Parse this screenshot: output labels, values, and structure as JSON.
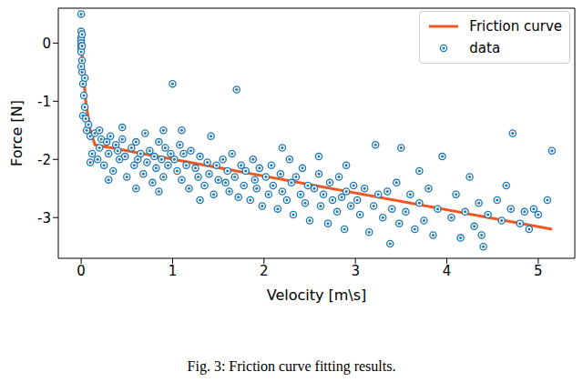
{
  "chart_data": {
    "type": "scatter",
    "caption": "Fig. 3: Friction curve fitting results.",
    "x_label": "Velocity [m\\s]",
    "y_label": "Force [N]",
    "xlim": [
      -0.25,
      5.4
    ],
    "xticks": [
      0,
      1,
      2,
      3,
      4,
      5
    ],
    "ylim": [
      -3.7,
      0.6
    ],
    "yticks": [
      -3,
      -2,
      -1,
      0
    ],
    "grid": false,
    "legend": "upper right",
    "series": [
      {
        "name": "Friction curve",
        "type": "line",
        "color": "#f0561f",
        "line_style": "solid",
        "x": [
          0,
          0.05,
          0.1,
          0.15,
          5.15
        ],
        "values": [
          0,
          -1.0,
          -1.5,
          -1.75,
          -3.2
        ]
      },
      {
        "name": "data",
        "type": "scatter",
        "color": "#1f77b4",
        "marker": "circle",
        "x": [
          0,
          0,
          0,
          0,
          0,
          0,
          0,
          0,
          0.01,
          0.01,
          0.01,
          0.01,
          0.02,
          0,
          0.02,
          0.03,
          0.04,
          0.05,
          0.06,
          0.04,
          0.08,
          0.1,
          0.12,
          0.15,
          0.18,
          0.2,
          0.22,
          0.25,
          0.28,
          0.3,
          0.32,
          0.35,
          0.38,
          0.4,
          0.42,
          0.45,
          0.48,
          0.5,
          0.1,
          0.2,
          0.3,
          0.45,
          0.55,
          0.58,
          0.6,
          0.62,
          0.65,
          0.68,
          0.7,
          0.72,
          0.75,
          0.78,
          0.8,
          0.82,
          0.85,
          0.88,
          0.9,
          0.92,
          0.95,
          0.98,
          0.6,
          0.85,
          1.0,
          0.9,
          1.02,
          1.05,
          1.08,
          1.1,
          1.12,
          1.15,
          1.18,
          1.2,
          1.25,
          1.28,
          1.3,
          1.35,
          1.38,
          1.4,
          1.42,
          1.45,
          1.48,
          1.5,
          1.1,
          1.3,
          1.55,
          1.58,
          1.6,
          1.62,
          1.65,
          1.68,
          1.7,
          1.72,
          1.75,
          1.78,
          1.8,
          1.85,
          1.88,
          1.9,
          1.92,
          1.95,
          1.98,
          2.02,
          2.05,
          2.08,
          2.1,
          2.15,
          2.18,
          2.2,
          2.25,
          2.28,
          2.3,
          2.32,
          2.35,
          2.4,
          2.42,
          2.45,
          2.48,
          2.5,
          2.2,
          2.55,
          2.6,
          2.62,
          2.65,
          2.7,
          2.72,
          2.75,
          2.8,
          2.82,
          2.85,
          2.88,
          2.9,
          2.95,
          2.98,
          2.6,
          2.9,
          3.02,
          3.05,
          3.1,
          3.15,
          3.2,
          3.22,
          3.25,
          3.3,
          3.35,
          3.38,
          3.4,
          3.45,
          3.48,
          3.5,
          3.55,
          3.6,
          3.65,
          3.7,
          3.75,
          3.8,
          3.85,
          3.9,
          3.95,
          3.7,
          4.05,
          4.1,
          4.15,
          4.2,
          4.25,
          4.3,
          4.35,
          4.4,
          4.45,
          4.38,
          4.55,
          4.6,
          4.7,
          4.72,
          4.8,
          4.85,
          4.95,
          5.0,
          5.1,
          5.15,
          4.9,
          4.65
        ],
        "values": [
          0.5,
          0.2,
          0.1,
          0.05,
          0,
          -0.05,
          -0.1,
          -0.15,
          0.15,
          -0.05,
          -0.3,
          -0.5,
          -0.7,
          -0.4,
          -1.25,
          -0.9,
          -1.1,
          -1.3,
          -1.5,
          -0.6,
          -1.4,
          -1.6,
          -1.9,
          -1.55,
          -2.0,
          -1.8,
          -1.65,
          -2.1,
          -1.7,
          -1.9,
          -1.6,
          -2.2,
          -1.75,
          -1.85,
          -2.0,
          -1.65,
          -1.95,
          -2.3,
          -2.05,
          -1.5,
          -2.35,
          -1.45,
          -1.8,
          -2.1,
          -1.7,
          -2.0,
          -1.9,
          -2.25,
          -1.55,
          -2.05,
          -1.85,
          -2.4,
          -1.95,
          -2.15,
          -1.7,
          -2.0,
          -2.3,
          -1.8,
          -2.1,
          -1.9,
          -2.5,
          -2.55,
          -0.7,
          -1.5,
          -2.0,
          -2.2,
          -1.75,
          -2.35,
          -1.9,
          -2.1,
          -2.5,
          -1.85,
          -2.15,
          -2.3,
          -1.95,
          -2.45,
          -2.05,
          -2.25,
          -1.6,
          -2.6,
          -2.1,
          -2.35,
          -1.5,
          -2.7,
          -2.0,
          -2.4,
          -2.2,
          -2.55,
          -1.9,
          -2.3,
          -0.8,
          -2.65,
          -2.1,
          -2.45,
          -2.2,
          -2.7,
          -2.0,
          -2.35,
          -2.5,
          -2.15,
          -2.8,
          -2.3,
          -2.6,
          -2.1,
          -2.45,
          -2.85,
          -2.25,
          -2.55,
          -2.7,
          -2.0,
          -2.4,
          -2.95,
          -2.3,
          -2.6,
          -2.15,
          -2.75,
          -2.45,
          -3.05,
          -1.8,
          -2.5,
          -2.25,
          -2.8,
          -2.6,
          -3.1,
          -2.4,
          -2.7,
          -2.9,
          -2.3,
          -2.65,
          -3.2,
          -2.55,
          -2.8,
          -2.45,
          -1.95,
          -2.1,
          -2.7,
          -2.95,
          -2.5,
          -3.25,
          -2.8,
          -1.75,
          -2.6,
          -3.0,
          -2.55,
          -3.45,
          -2.85,
          -2.4,
          -3.1,
          -1.8,
          -2.9,
          -2.6,
          -3.2,
          -2.75,
          -3.05,
          -2.5,
          -3.3,
          -2.85,
          -1.95,
          -2.2,
          -3.0,
          -2.6,
          -3.35,
          -2.9,
          -2.3,
          -3.15,
          -2.75,
          -3.5,
          -2.95,
          -3.3,
          -2.7,
          -3.05,
          -2.85,
          -1.55,
          -3.1,
          -2.9,
          -2.85,
          -2.95,
          -2.7,
          -1.85,
          -3.2,
          -2.45
        ]
      }
    ]
  }
}
